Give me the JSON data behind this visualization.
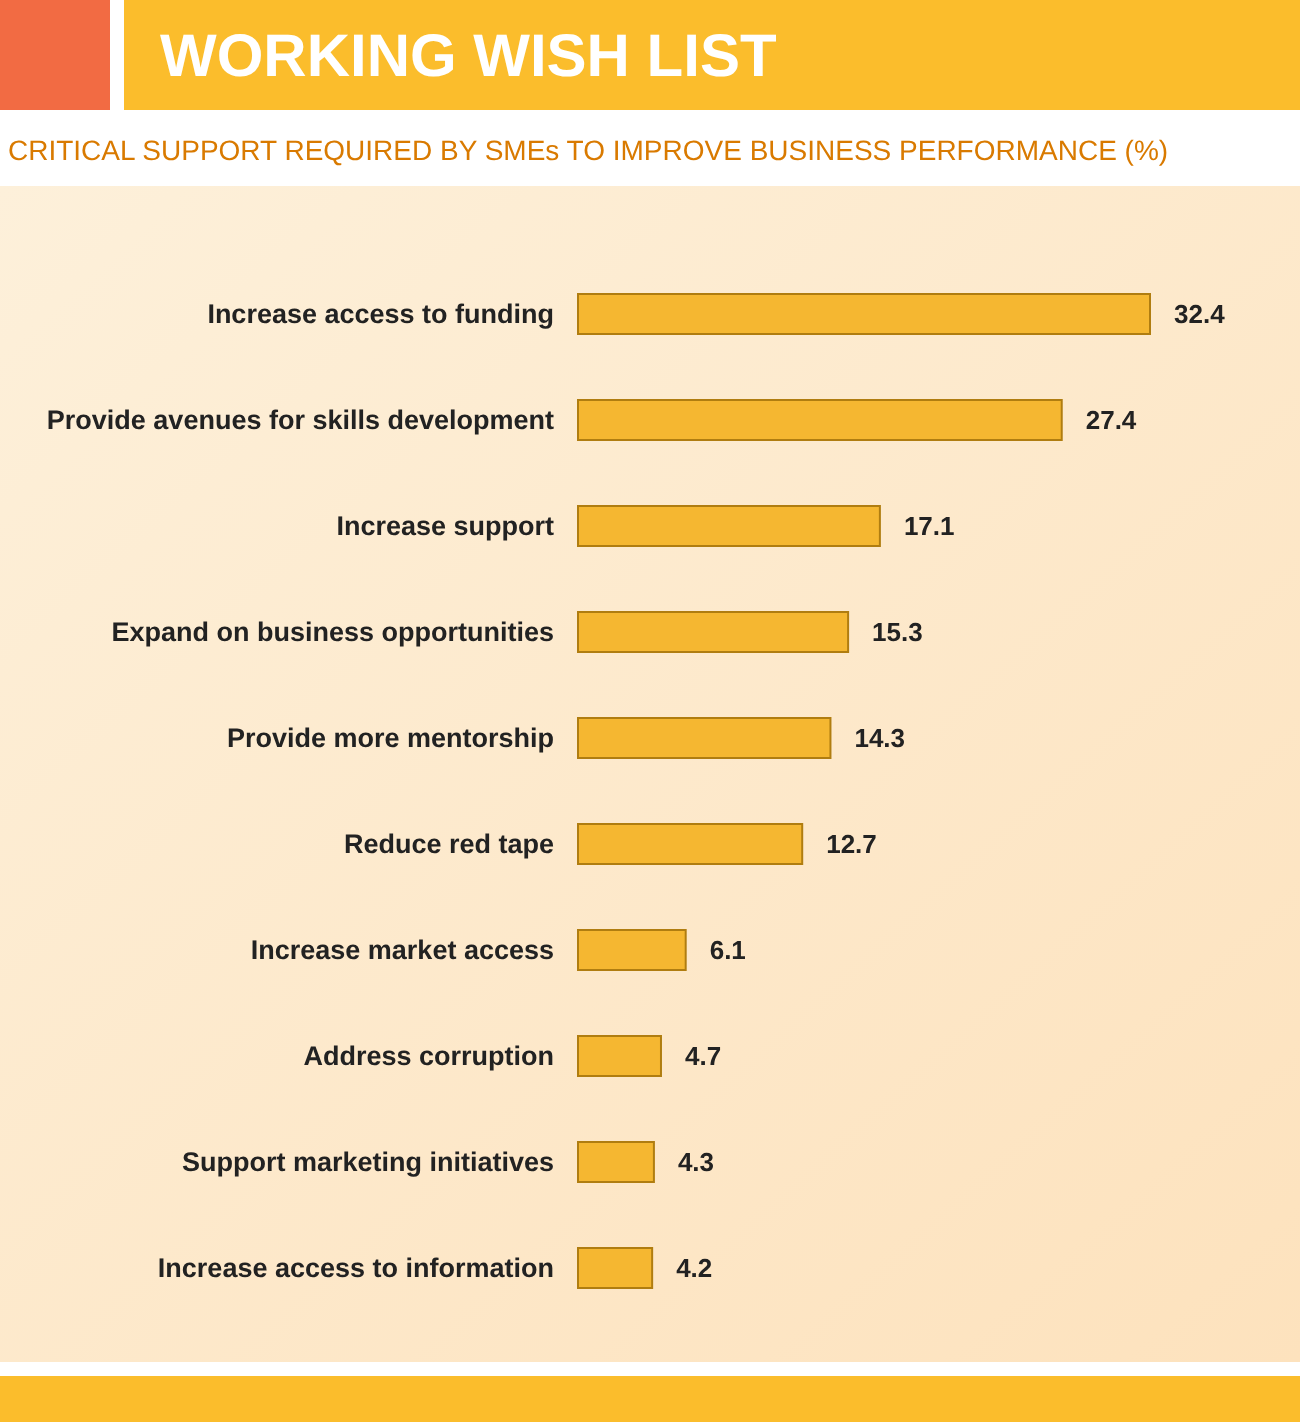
{
  "chart_data": {
    "type": "bar",
    "orientation": "horizontal",
    "title": "WORKING WISH LIST",
    "subtitle": "CRITICAL SUPPORT REQUIRED BY SMEs TO IMPROVE BUSINESS PERFORMANCE (%)",
    "categories": [
      "Increase access to funding",
      "Provide avenues for skills development",
      "Increase support",
      "Expand on business opportunities",
      "Provide more mentorship",
      "Reduce red tape",
      "Increase market access",
      "Address corruption",
      "Support marketing initiatives",
      "Increase access to information"
    ],
    "values": [
      32.4,
      27.4,
      17.1,
      15.3,
      14.3,
      12.7,
      6.1,
      4.7,
      4.3,
      4.2
    ],
    "color": "#f5b731",
    "data_labels": true,
    "xlim": [
      0,
      32.4
    ],
    "tick_labels": "y"
  }
}
